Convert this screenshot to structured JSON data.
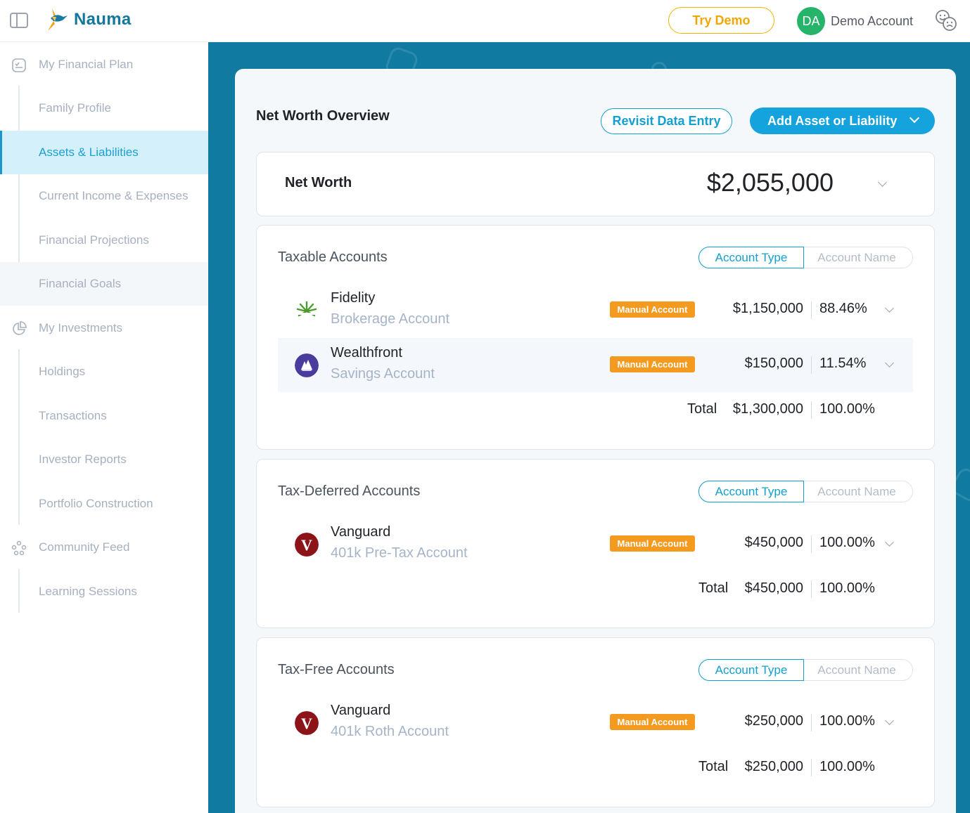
{
  "app": {
    "brand": "Nauma"
  },
  "header": {
    "try_demo": "Try Demo",
    "avatar_initials": "DA",
    "account_name": "Demo Account"
  },
  "sidebar": {
    "items": [
      {
        "label": "My Financial Plan",
        "icon": "checklist-icon"
      },
      {
        "label": "Family Profile"
      },
      {
        "label": "Assets & Liabilities"
      },
      {
        "label": "Current Income & Expenses"
      },
      {
        "label": "Financial Projections"
      },
      {
        "label": "Financial Goals"
      },
      {
        "label": "My Investments",
        "icon": "pie-chart-icon"
      },
      {
        "label": "Holdings"
      },
      {
        "label": "Transactions"
      },
      {
        "label": "Investor Reports"
      },
      {
        "label": "Portfolio Construction"
      },
      {
        "label": "Community Feed",
        "icon": "community-icon"
      },
      {
        "label": "Learning Sessions"
      }
    ],
    "active_index": 2
  },
  "main": {
    "title": "Net Worth Overview",
    "revisit_label": "Revisit Data Entry",
    "add_label": "Add Asset or Liability",
    "net_worth": {
      "label": "Net Worth",
      "value": "$2,055,000"
    },
    "toggle": {
      "option_a": "Account Type",
      "option_b": "Account Name"
    },
    "sections": [
      {
        "title": "Taxable Accounts",
        "accounts": [
          {
            "institution": "Fidelity",
            "account": "Brokerage Account",
            "badge": "Manual Account",
            "amount": "$1,150,000",
            "pct": "88.46%"
          },
          {
            "institution": "Wealthfront",
            "account": "Savings Account",
            "badge": "Manual Account",
            "amount": "$150,000",
            "pct": "11.54%"
          }
        ],
        "total_label": "Total",
        "total_amount": "$1,300,000",
        "total_pct": "100.00%"
      },
      {
        "title": "Tax-Deferred Accounts",
        "accounts": [
          {
            "institution": "Vanguard",
            "account": "401k Pre-Tax Account",
            "badge": "Manual Account",
            "amount": "$450,000",
            "pct": "100.00%"
          }
        ],
        "total_label": "Total",
        "total_amount": "$450,000",
        "total_pct": "100.00%"
      },
      {
        "title": "Tax-Free Accounts",
        "accounts": [
          {
            "institution": "Vanguard",
            "account": "401k Roth Account",
            "badge": "Manual Account",
            "amount": "$250,000",
            "pct": "100.00%"
          }
        ],
        "total_label": "Total",
        "total_amount": "$250,000",
        "total_pct": "100.00%"
      }
    ]
  },
  "colors": {
    "brand": "#12789e",
    "accent": "#14a3dc",
    "main_bg": "#117aa1",
    "badge": "#f39a1f",
    "try_demo": "#f0b400",
    "avatar": "#26b36a"
  }
}
